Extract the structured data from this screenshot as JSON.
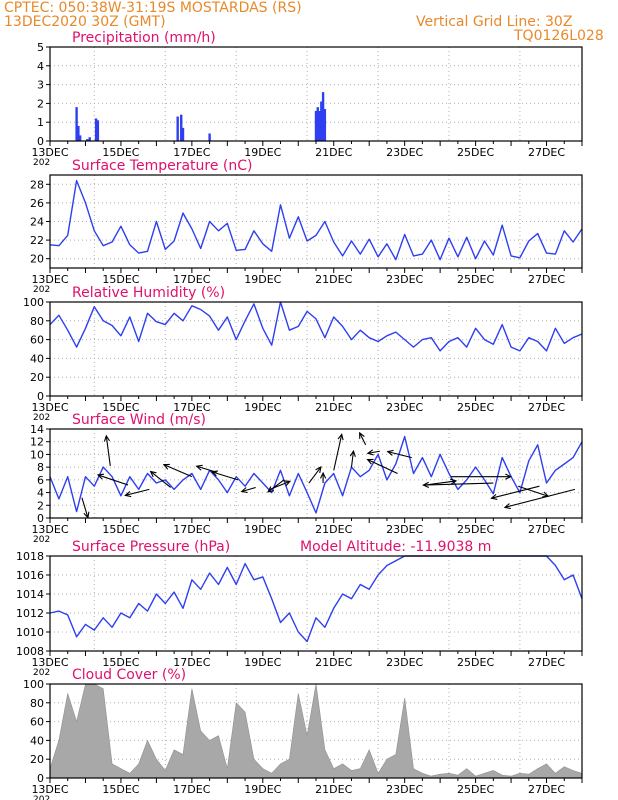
{
  "header": {
    "line1_left": "CPTEC:   050:38W-31:19S   MOSTARDAS (RS)",
    "line2_left": "13DEC2020 30Z (GMT)",
    "line1_right": "Vertical Grid Line: 30Z",
    "line2_right": "TQ0126L028"
  },
  "colors": {
    "header": "#e8892a",
    "title": "#e0106e",
    "series": "#2e3ff0",
    "cloud": "#a8a8a8",
    "arrow": "#000000"
  },
  "x_axis": {
    "labels": [
      "13DEC",
      "15DEC",
      "17DEC",
      "19DEC",
      "21DEC",
      "23DEC",
      "25DEC",
      "27DEC"
    ],
    "label_days": [
      13,
      15,
      17,
      19,
      21,
      23,
      25,
      27
    ],
    "year_stub": "202",
    "range_days": [
      13,
      28
    ]
  },
  "chart_data": [
    {
      "type": "bar",
      "id": "precip",
      "title": "Precipitation  (mm/h)",
      "ylim": [
        0,
        5
      ],
      "yticks": [
        0,
        1,
        2,
        3,
        4,
        5
      ],
      "grid": true,
      "x": [
        13.75,
        13.8,
        13.85,
        14.05,
        14.12,
        14.3,
        14.35,
        16.6,
        16.7,
        16.75,
        17.5,
        20.5,
        20.55,
        20.6,
        20.65,
        20.7,
        20.75
      ],
      "values": [
        1.8,
        0.8,
        0.3,
        0.1,
        0.2,
        1.2,
        1.1,
        1.3,
        1.4,
        0.7,
        0.4,
        1.6,
        1.8,
        1.6,
        2.1,
        2.6,
        1.7
      ]
    },
    {
      "type": "line",
      "id": "temp",
      "title": "Surface Temperature (nC)",
      "ylim": [
        19,
        29
      ],
      "yticks": [
        20,
        22,
        24,
        26,
        28
      ],
      "grid": true,
      "x": [
        13.0,
        13.25,
        13.5,
        13.75,
        14.0,
        14.25,
        14.5,
        14.75,
        15.0,
        15.25,
        15.5,
        15.75,
        16.0,
        16.25,
        16.5,
        16.75,
        17.0,
        17.25,
        17.5,
        17.75,
        18.0,
        18.25,
        18.5,
        18.75,
        19.0,
        19.25,
        19.5,
        19.75,
        20.0,
        20.25,
        20.5,
        20.75,
        21.0,
        21.25,
        21.5,
        21.75,
        22.0,
        22.25,
        22.5,
        22.75,
        23.0,
        23.25,
        23.5,
        23.75,
        24.0,
        24.25,
        24.5,
        24.75,
        25.0,
        25.25,
        25.5,
        25.75,
        26.0,
        26.25,
        26.5,
        26.75,
        27.0,
        27.25,
        27.5,
        27.75,
        28.0
      ],
      "values": [
        21.5,
        21.4,
        22.5,
        28.4,
        26.0,
        23.0,
        21.4,
        21.8,
        23.5,
        21.5,
        20.6,
        20.8,
        24.0,
        21.0,
        21.9,
        24.9,
        23.2,
        21.1,
        24.0,
        23.0,
        23.8,
        20.9,
        21.0,
        23.0,
        21.6,
        20.8,
        25.8,
        22.2,
        24.5,
        21.9,
        22.5,
        24.0,
        21.8,
        20.3,
        21.9,
        20.5,
        22.1,
        20.2,
        21.6,
        19.9,
        22.6,
        20.3,
        20.5,
        22.0,
        19.9,
        22.2,
        20.2,
        22.3,
        20.0,
        21.9,
        20.4,
        23.6,
        20.3,
        20.1,
        21.9,
        22.7,
        20.6,
        20.5,
        23.0,
        21.8,
        23.2
      ]
    },
    {
      "type": "line",
      "id": "rh",
      "title": "Relative Humidity (%)",
      "ylim": [
        0,
        100
      ],
      "yticks": [
        0,
        20,
        40,
        60,
        80,
        100
      ],
      "grid": true,
      "x": [
        13.0,
        13.25,
        13.5,
        13.75,
        14.0,
        14.25,
        14.5,
        14.75,
        15.0,
        15.25,
        15.5,
        15.75,
        16.0,
        16.25,
        16.5,
        16.75,
        17.0,
        17.25,
        17.5,
        17.75,
        18.0,
        18.25,
        18.5,
        18.75,
        19.0,
        19.25,
        19.5,
        19.75,
        20.0,
        20.25,
        20.5,
        20.75,
        21.0,
        21.25,
        21.5,
        21.75,
        22.0,
        22.25,
        22.5,
        22.75,
        23.0,
        23.25,
        23.5,
        23.75,
        24.0,
        24.25,
        24.5,
        24.75,
        25.0,
        25.25,
        25.5,
        25.75,
        26.0,
        26.25,
        26.5,
        26.75,
        27.0,
        27.25,
        27.5,
        27.75,
        28.0
      ],
      "values": [
        76,
        86,
        70,
        52,
        72,
        95,
        80,
        75,
        64,
        84,
        58,
        88,
        79,
        76,
        88,
        80,
        96,
        92,
        85,
        70,
        84,
        60,
        80,
        98,
        72,
        54,
        100,
        70,
        74,
        90,
        82,
        62,
        84,
        74,
        60,
        70,
        62,
        58,
        64,
        68,
        60,
        52,
        60,
        62,
        48,
        58,
        62,
        52,
        72,
        60,
        55,
        76,
        52,
        48,
        62,
        58,
        48,
        72,
        56,
        62,
        66
      ]
    },
    {
      "type": "line",
      "id": "wind",
      "title": "Surface Wind (m/s)",
      "ylim": [
        0,
        14
      ],
      "yticks": [
        0,
        2,
        4,
        6,
        8,
        10,
        12,
        14
      ],
      "grid": true,
      "x": [
        13.0,
        13.25,
        13.5,
        13.75,
        14.0,
        14.25,
        14.5,
        14.75,
        15.0,
        15.25,
        15.5,
        15.75,
        16.0,
        16.25,
        16.5,
        16.75,
        17.0,
        17.25,
        17.5,
        17.75,
        18.0,
        18.25,
        18.5,
        18.75,
        19.0,
        19.25,
        19.5,
        19.75,
        20.0,
        20.25,
        20.5,
        20.75,
        21.0,
        21.25,
        21.5,
        21.75,
        22.0,
        22.25,
        22.5,
        22.75,
        23.0,
        23.25,
        23.5,
        23.75,
        24.0,
        24.25,
        24.5,
        24.75,
        25.0,
        25.25,
        25.5,
        25.75,
        26.0,
        26.25,
        26.5,
        26.75,
        27.0,
        27.25,
        27.5,
        27.75,
        28.0
      ],
      "values": [
        6.5,
        3.0,
        6.5,
        1.0,
        6.5,
        5.0,
        8.0,
        6.5,
        3.5,
        6.5,
        4.5,
        7.0,
        5.5,
        6.0,
        4.5,
        6.0,
        7.0,
        4.5,
        7.5,
        6.0,
        4.0,
        6.5,
        5.0,
        7.0,
        5.5,
        4.0,
        7.5,
        3.5,
        7.0,
        4.0,
        0.8,
        5.5,
        7.0,
        3.5,
        8.0,
        6.5,
        7.5,
        10.0,
        6.0,
        8.5,
        12.8,
        7.0,
        9.5,
        6.5,
        10.0,
        7.0,
        4.5,
        6.0,
        8.0,
        6.0,
        3.8,
        9.5,
        6.5,
        4.0,
        9.0,
        11.5,
        5.5,
        7.5,
        8.5,
        9.5,
        12.0
      ]
    },
    {
      "type": "line",
      "id": "pres",
      "title": "Surface Pressure (hPa)",
      "subtitle": "Model Altitude: -11.9038 m",
      "ylim": [
        1008,
        1018
      ],
      "yticks": [
        1008,
        1010,
        1012,
        1014,
        1016,
        1018
      ],
      "grid": true,
      "x": [
        13.0,
        13.25,
        13.5,
        13.75,
        14.0,
        14.25,
        14.5,
        14.75,
        15.0,
        15.25,
        15.5,
        15.75,
        16.0,
        16.25,
        16.5,
        16.75,
        17.0,
        17.25,
        17.5,
        17.75,
        18.0,
        18.25,
        18.5,
        18.75,
        19.0,
        19.25,
        19.5,
        19.75,
        20.0,
        20.25,
        20.5,
        20.75,
        21.0,
        21.25,
        21.5,
        21.75,
        22.0,
        22.25,
        22.5,
        22.75,
        23.0,
        23.25,
        23.5,
        23.75,
        24.0,
        24.25,
        24.5,
        24.75,
        25.0,
        25.25,
        25.5,
        25.75,
        26.0,
        26.25,
        26.5,
        26.75,
        27.0,
        27.25,
        27.5,
        27.75,
        28.0
      ],
      "values": [
        1012.0,
        1012.2,
        1011.8,
        1009.5,
        1010.8,
        1010.2,
        1011.5,
        1010.5,
        1012.0,
        1011.5,
        1013.0,
        1012.2,
        1014.0,
        1013.0,
        1014.2,
        1012.5,
        1015.5,
        1014.5,
        1016.2,
        1015.0,
        1016.8,
        1015.0,
        1017.2,
        1015.5,
        1015.8,
        1013.5,
        1011.0,
        1012.0,
        1010.0,
        1009.0,
        1011.5,
        1010.5,
        1012.5,
        1014.0,
        1013.5,
        1015.0,
        1014.5,
        1016.0,
        1017.0,
        1017.5,
        1018.0,
        1018.0,
        1018.0,
        1018.0,
        1018.0,
        1018.0,
        1018.0,
        1018.0,
        1018.0,
        1018.0,
        1018.0,
        1018.0,
        1018.0,
        1018.0,
        1018.0,
        1018.0,
        1018.0,
        1017.0,
        1015.5,
        1016.0,
        1013.5
      ]
    },
    {
      "type": "area",
      "id": "cloud",
      "title": "Cloud Cover (%)",
      "ylim": [
        0,
        100
      ],
      "yticks": [
        0,
        20,
        40,
        60,
        80,
        100
      ],
      "grid": true,
      "x": [
        13.0,
        13.25,
        13.5,
        13.75,
        14.0,
        14.25,
        14.5,
        14.75,
        15.0,
        15.25,
        15.5,
        15.75,
        16.0,
        16.25,
        16.5,
        16.75,
        17.0,
        17.25,
        17.5,
        17.75,
        18.0,
        18.25,
        18.5,
        18.75,
        19.0,
        19.25,
        19.5,
        19.75,
        20.0,
        20.25,
        20.5,
        20.75,
        21.0,
        21.25,
        21.5,
        21.75,
        22.0,
        22.25,
        22.5,
        22.75,
        23.0,
        23.25,
        23.5,
        23.75,
        24.0,
        24.25,
        24.5,
        24.75,
        25.0,
        25.25,
        25.5,
        25.75,
        26.0,
        26.25,
        26.5,
        26.75,
        27.0,
        27.25,
        27.5,
        27.75,
        28.0
      ],
      "values": [
        10,
        40,
        90,
        60,
        100,
        100,
        95,
        15,
        10,
        5,
        15,
        40,
        20,
        8,
        30,
        25,
        95,
        50,
        40,
        45,
        10,
        80,
        70,
        20,
        10,
        5,
        15,
        20,
        90,
        45,
        100,
        30,
        10,
        15,
        8,
        10,
        30,
        5,
        20,
        25,
        85,
        10,
        5,
        2,
        4,
        5,
        3,
        10,
        2,
        5,
        8,
        3,
        2,
        5,
        4,
        10,
        15,
        5,
        12,
        8,
        5
      ]
    }
  ],
  "wind_vectors": {
    "x": [
      13.9,
      14.7,
      15.2,
      15.8,
      16.4,
      17.0,
      17.7,
      18.3,
      18.8,
      19.2,
      19.6,
      20.3,
      20.7,
      21.0,
      21.5,
      21.9,
      22.3,
      22.8,
      23.2,
      23.6,
      24.3,
      25.5,
      26.2,
      26.8,
      27.8
    ],
    "y": [
      3.2,
      8.2,
      5.2,
      4.5,
      4.8,
      6.5,
      7.2,
      6.0,
      4.8,
      4.5,
      6.0,
      5.5,
      5.5,
      7.5,
      8.0,
      11.5,
      10.5,
      7.0,
      9.5,
      5.2,
      6.5,
      5.5,
      5.0,
      5.0,
      4.5
    ],
    "u": [
      0.3,
      -0.2,
      -1.5,
      -1.2,
      -1.0,
      -1.4,
      -1.0,
      -1.3,
      -0.7,
      1.0,
      -0.8,
      0.6,
      0.0,
      0.4,
      0.1,
      -0.3,
      -0.6,
      -1.5,
      -1.2,
      1.5,
      3.0,
      -3.5,
      1.5,
      -2.4,
      -3.5
    ],
    "v": [
      -1.0,
      1.5,
      0.5,
      -0.3,
      0.8,
      0.6,
      0.3,
      0.4,
      -0.2,
      0.4,
      -0.6,
      0.8,
      0.5,
      1.8,
      0.8,
      0.6,
      -0.1,
      0.7,
      0.3,
      0.2,
      0.0,
      -0.1,
      -0.5,
      -0.6,
      -0.9
    ]
  }
}
